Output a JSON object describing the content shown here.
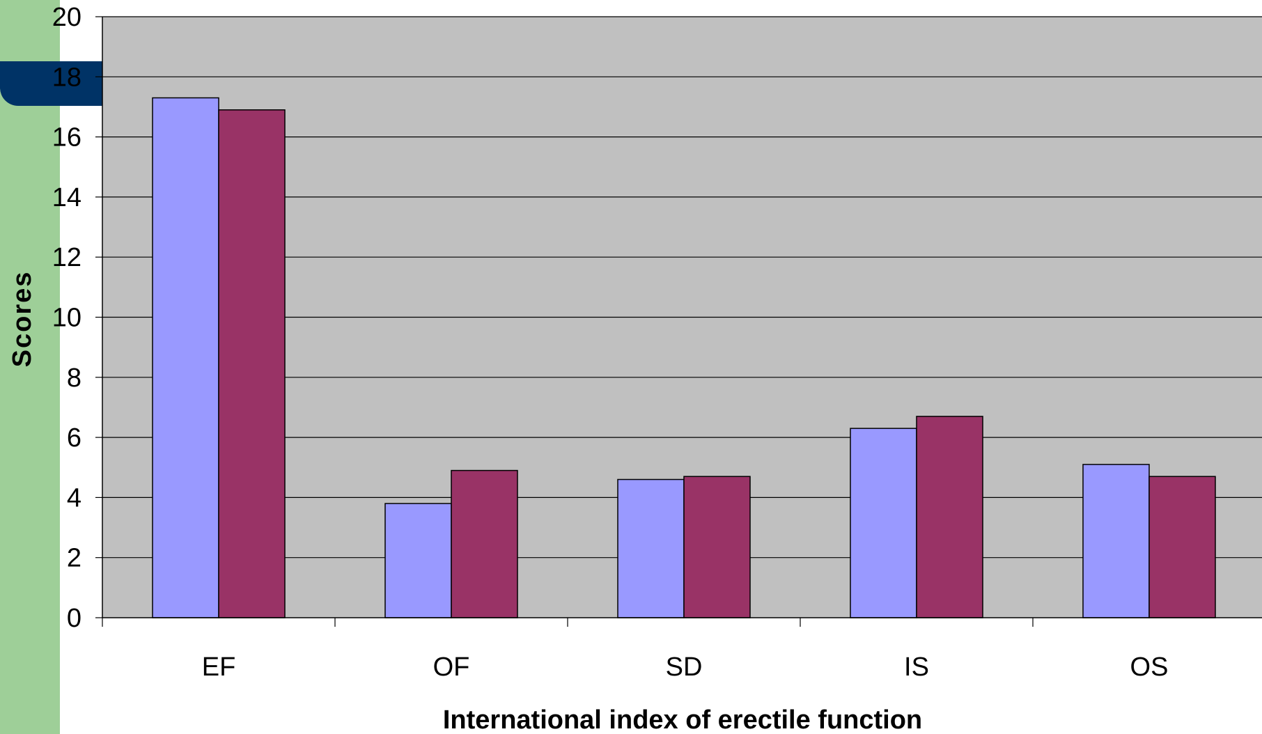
{
  "colors": {
    "plot_bg": "#c0c0c0",
    "side_strip": "#9ecf98",
    "side_tab": "#003366",
    "series_1": "#9999ff",
    "series_2": "#993366"
  },
  "chart_data": {
    "type": "bar",
    "title": "",
    "xlabel": "International index of erectile  function",
    "ylabel": "Scores",
    "categories": [
      "EF",
      "OF",
      "SD",
      "IS",
      "OS"
    ],
    "series": [
      {
        "values": [
          17.3,
          3.8,
          4.6,
          6.3,
          5.1
        ]
      },
      {
        "values": [
          16.9,
          4.9,
          4.7,
          6.7,
          4.7
        ]
      }
    ],
    "ylim": [
      0,
      20
    ],
    "yticks": [
      0,
      2,
      4,
      6,
      8,
      10,
      12,
      14,
      16,
      18,
      20
    ],
    "grid": true,
    "legend": "none"
  }
}
